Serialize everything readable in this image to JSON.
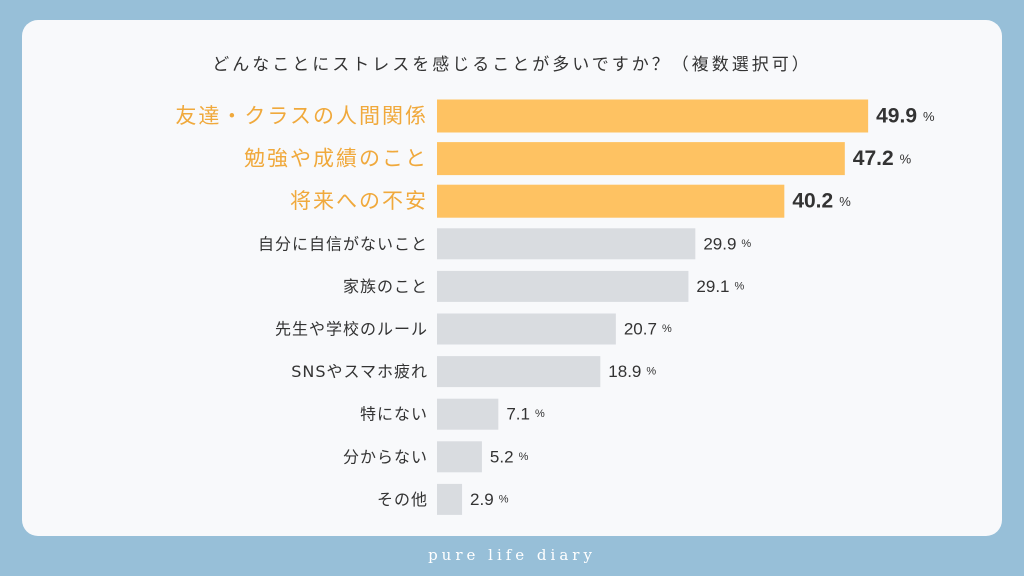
{
  "title": "どんなことにストレスを感じることが多いですか？（複数選択可）",
  "footer": "pure life diary",
  "colors": {
    "background": "#97bfd8",
    "card": "#f8f9fb",
    "highlight_bar": "#fec262",
    "highlight_label": "#f0a93c",
    "bar": "#d9dce0",
    "text": "#333333"
  },
  "chart_data": {
    "type": "bar",
    "orientation": "horizontal",
    "unit": "%",
    "xlim": [
      0,
      50
    ],
    "grid": false,
    "highlight_count": 3,
    "categories": [
      "友達・クラスの人間関係",
      "勉強や成績のこと",
      "将来への不安",
      "自分に自信がないこと",
      "家族のこと",
      "先生や学校のルール",
      "SNSやスマホ疲れ",
      "特にない",
      "分からない",
      "その他"
    ],
    "values": [
      49.9,
      47.2,
      40.2,
      29.9,
      29.1,
      20.7,
      18.9,
      7.1,
      5.2,
      2.9
    ]
  }
}
